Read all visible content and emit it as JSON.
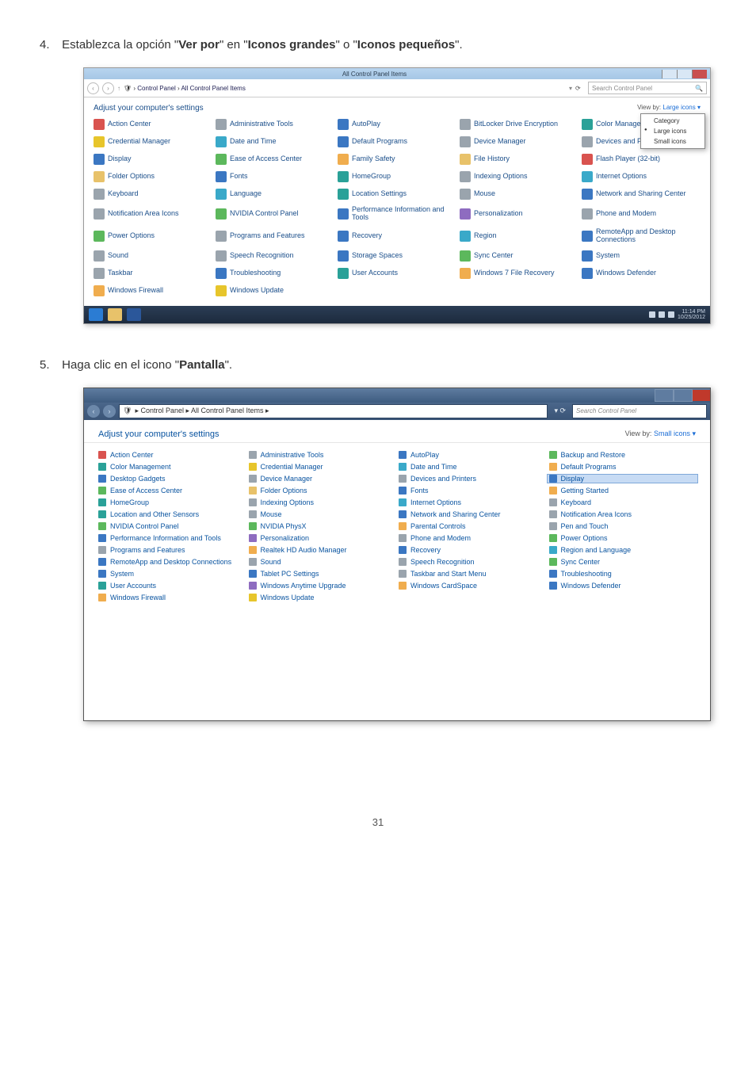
{
  "step4": {
    "number": "4.",
    "prefix": "Establezca la opción \"",
    "bold1": "Ver por",
    "mid1": "\" en \"",
    "bold2": "Iconos grandes",
    "mid2": "\" o \"",
    "bold3": "Iconos pequeños",
    "suffix": "\"."
  },
  "step5": {
    "number": "5.",
    "prefix": "Haga clic en el icono \"",
    "bold1": "Pantalla",
    "suffix": "\"."
  },
  "win1": {
    "title": "All Control Panel Items",
    "path_sep": " › ",
    "path_a": "Control Panel",
    "path_b": "All Control Panel Items",
    "search_placeholder": "Search Control Panel",
    "search_icon": "🔍",
    "adjust": "Adjust your computer's settings",
    "viewby_label": "View by:",
    "viewby_value": "Large icons ▾",
    "menu_category": "Category",
    "menu_large": "Large icons",
    "menu_small": "Small icons",
    "taskbar_time": "11:14 PM",
    "taskbar_date": "10/25/2012",
    "items": [
      {
        "l": "Action Center",
        "c": "c-flag"
      },
      {
        "l": "Administrative Tools",
        "c": "c-gray"
      },
      {
        "l": "AutoPlay",
        "c": "c-blue"
      },
      {
        "l": "BitLocker Drive Encryption",
        "c": "c-gray"
      },
      {
        "l": "Color Management",
        "c": "c-teal"
      },
      {
        "l": "Credential Manager",
        "c": "c-yellow"
      },
      {
        "l": "Date and Time",
        "c": "c-cyan"
      },
      {
        "l": "Default Programs",
        "c": "c-blue"
      },
      {
        "l": "Device Manager",
        "c": "c-gray"
      },
      {
        "l": "Devices and Printers",
        "c": "c-gray"
      },
      {
        "l": "Display",
        "c": "c-blue"
      },
      {
        "l": "Ease of Access Center",
        "c": "c-green"
      },
      {
        "l": "Family Safety",
        "c": "c-orange"
      },
      {
        "l": "File History",
        "c": "c-folder"
      },
      {
        "l": "Flash Player (32-bit)",
        "c": "c-red"
      },
      {
        "l": "Folder Options",
        "c": "c-folder"
      },
      {
        "l": "Fonts",
        "c": "c-blue"
      },
      {
        "l": "HomeGroup",
        "c": "c-teal"
      },
      {
        "l": "Indexing Options",
        "c": "c-gray"
      },
      {
        "l": "Internet Options",
        "c": "c-cyan"
      },
      {
        "l": "Keyboard",
        "c": "c-gray"
      },
      {
        "l": "Language",
        "c": "c-cyan"
      },
      {
        "l": "Location Settings",
        "c": "c-teal"
      },
      {
        "l": "Mouse",
        "c": "c-gray"
      },
      {
        "l": "Network and Sharing Center",
        "c": "c-blue"
      },
      {
        "l": "Notification Area Icons",
        "c": "c-gray"
      },
      {
        "l": "NVIDIA Control Panel",
        "c": "c-green"
      },
      {
        "l": "Performance Information and Tools",
        "c": "c-blue"
      },
      {
        "l": "Personalization",
        "c": "c-purple"
      },
      {
        "l": "Phone and Modem",
        "c": "c-gray"
      },
      {
        "l": "Power Options",
        "c": "c-green"
      },
      {
        "l": "Programs and Features",
        "c": "c-gray"
      },
      {
        "l": "Recovery",
        "c": "c-blue"
      },
      {
        "l": "Region",
        "c": "c-cyan"
      },
      {
        "l": "RemoteApp and Desktop Connections",
        "c": "c-blue"
      },
      {
        "l": "Sound",
        "c": "c-gray"
      },
      {
        "l": "Speech Recognition",
        "c": "c-gray"
      },
      {
        "l": "Storage Spaces",
        "c": "c-blue"
      },
      {
        "l": "Sync Center",
        "c": "c-green"
      },
      {
        "l": "System",
        "c": "c-blue"
      },
      {
        "l": "Taskbar",
        "c": "c-gray"
      },
      {
        "l": "Troubleshooting",
        "c": "c-blue"
      },
      {
        "l": "User Accounts",
        "c": "c-teal"
      },
      {
        "l": "Windows 7 File Recovery",
        "c": "c-orange"
      },
      {
        "l": "Windows Defender",
        "c": "c-blue"
      },
      {
        "l": "Windows Firewall",
        "c": "c-orange"
      },
      {
        "l": "Windows Update",
        "c": "c-yellow"
      }
    ]
  },
  "win2": {
    "path": "▸ Control Panel ▸ All Control Panel Items ▸",
    "search_placeholder": "Search Control Panel",
    "adjust": "Adjust your computer's settings",
    "viewby_label": "View by:",
    "viewby_value": "Small icons ▾",
    "items": [
      {
        "l": "Action Center",
        "c": "c-flag"
      },
      {
        "l": "Administrative Tools",
        "c": "c-gray"
      },
      {
        "l": "AutoPlay",
        "c": "c-blue"
      },
      {
        "l": "Backup and Restore",
        "c": "c-green"
      },
      {
        "l": "Color Management",
        "c": "c-teal"
      },
      {
        "l": "Credential Manager",
        "c": "c-yellow"
      },
      {
        "l": "Date and Time",
        "c": "c-cyan"
      },
      {
        "l": "Default Programs",
        "c": "c-orange"
      },
      {
        "l": "Desktop Gadgets",
        "c": "c-blue"
      },
      {
        "l": "Device Manager",
        "c": "c-gray"
      },
      {
        "l": "Devices and Printers",
        "c": "c-gray"
      },
      {
        "l": "Display",
        "c": "c-blue",
        "hi": true
      },
      {
        "l": "Ease of Access Center",
        "c": "c-green"
      },
      {
        "l": "Folder Options",
        "c": "c-folder"
      },
      {
        "l": "Fonts",
        "c": "c-blue"
      },
      {
        "l": "Getting Started",
        "c": "c-orange"
      },
      {
        "l": "HomeGroup",
        "c": "c-teal"
      },
      {
        "l": "Indexing Options",
        "c": "c-gray"
      },
      {
        "l": "Internet Options",
        "c": "c-cyan"
      },
      {
        "l": "Keyboard",
        "c": "c-gray"
      },
      {
        "l": "Location and Other Sensors",
        "c": "c-teal"
      },
      {
        "l": "Mouse",
        "c": "c-gray"
      },
      {
        "l": "Network and Sharing Center",
        "c": "c-blue"
      },
      {
        "l": "Notification Area Icons",
        "c": "c-gray"
      },
      {
        "l": "NVIDIA Control Panel",
        "c": "c-green"
      },
      {
        "l": "NVIDIA PhysX",
        "c": "c-green"
      },
      {
        "l": "Parental Controls",
        "c": "c-orange"
      },
      {
        "l": "Pen and Touch",
        "c": "c-gray"
      },
      {
        "l": "Performance Information and Tools",
        "c": "c-blue"
      },
      {
        "l": "Personalization",
        "c": "c-purple"
      },
      {
        "l": "Phone and Modem",
        "c": "c-gray"
      },
      {
        "l": "Power Options",
        "c": "c-green"
      },
      {
        "l": "Programs and Features",
        "c": "c-gray"
      },
      {
        "l": "Realtek HD Audio Manager",
        "c": "c-orange"
      },
      {
        "l": "Recovery",
        "c": "c-blue"
      },
      {
        "l": "Region and Language",
        "c": "c-cyan"
      },
      {
        "l": "RemoteApp and Desktop Connections",
        "c": "c-blue"
      },
      {
        "l": "Sound",
        "c": "c-gray"
      },
      {
        "l": "Speech Recognition",
        "c": "c-gray"
      },
      {
        "l": "Sync Center",
        "c": "c-green"
      },
      {
        "l": "System",
        "c": "c-blue"
      },
      {
        "l": "Tablet PC Settings",
        "c": "c-blue"
      },
      {
        "l": "Taskbar and Start Menu",
        "c": "c-gray"
      },
      {
        "l": "Troubleshooting",
        "c": "c-blue"
      },
      {
        "l": "User Accounts",
        "c": "c-teal"
      },
      {
        "l": "Windows Anytime Upgrade",
        "c": "c-purple"
      },
      {
        "l": "Windows CardSpace",
        "c": "c-orange"
      },
      {
        "l": "Windows Defender",
        "c": "c-blue"
      },
      {
        "l": "Windows Firewall",
        "c": "c-orange"
      },
      {
        "l": "Windows Update",
        "c": "c-yellow"
      }
    ]
  },
  "page_number": "31"
}
